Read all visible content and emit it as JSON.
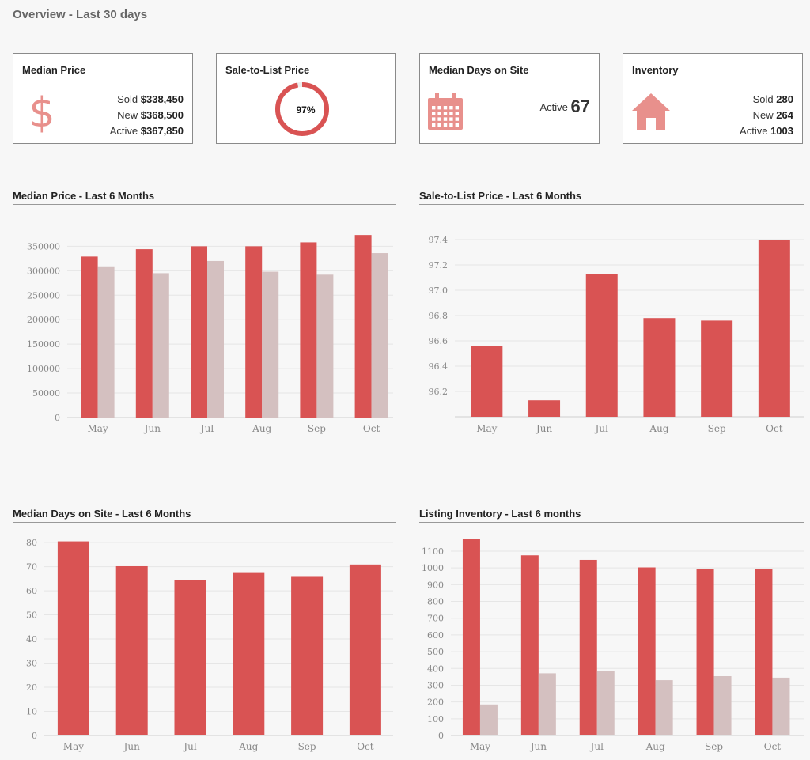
{
  "page": {
    "title": "Overview - Last 30 days"
  },
  "colors": {
    "primary": "#d95353",
    "secondary": "#d4c0c0",
    "icon": "#e8908c"
  },
  "cards": {
    "median_price": {
      "title": "Median Price",
      "icon": "dollar-icon",
      "sold_label": "Sold",
      "sold_value": "$338,450",
      "new_label": "New",
      "new_value": "$368,500",
      "active_label": "Active",
      "active_value": "$367,850"
    },
    "sale_to_list": {
      "title": "Sale-to-List Price",
      "value": "97%",
      "fraction": 0.97
    },
    "median_days": {
      "title": "Median Days on Site",
      "icon": "calendar-icon",
      "active_label": "Active",
      "active_value": "67"
    },
    "inventory": {
      "title": "Inventory",
      "icon": "house-icon",
      "sold_label": "Sold",
      "sold_value": "280",
      "new_label": "New",
      "new_value": "264",
      "active_label": "Active",
      "active_value": "1003"
    }
  },
  "chart_data": [
    {
      "id": "median_price",
      "title": "Median Price - Last 6 Months",
      "type": "bar",
      "categories": [
        "May",
        "Jun",
        "Jul",
        "Aug",
        "Sep",
        "Oct"
      ],
      "series": [
        {
          "values": [
            329000,
            344000,
            350000,
            350000,
            358000,
            373000
          ]
        },
        {
          "values": [
            309000,
            295000,
            320000,
            298000,
            292000,
            336000
          ]
        }
      ],
      "ylim": [
        0,
        370000
      ],
      "yticks": [
        0,
        50000,
        100000,
        150000,
        200000,
        250000,
        300000,
        350000
      ],
      "grid": true
    },
    {
      "id": "sale_to_list",
      "title": "Sale-to-List Price - Last 6 Months",
      "type": "bar",
      "categories": [
        "May",
        "Jun",
        "Jul",
        "Aug",
        "Sep",
        "Oct"
      ],
      "series": [
        {
          "values": [
            96.56,
            96.13,
            97.13,
            96.78,
            96.76,
            97.4
          ]
        }
      ],
      "ylim": [
        96.0,
        97.45
      ],
      "yticks": [
        96.2,
        96.4,
        96.6,
        96.8,
        97.0,
        97.2,
        97.4
      ],
      "ytick_labels": [
        "96.2",
        "96.4",
        "96.6",
        "96.8",
        "97.0",
        "97.2",
        "97.4"
      ],
      "grid": true
    },
    {
      "id": "median_days",
      "title": "Median Days on Site - Last 6 Months",
      "type": "bar",
      "categories": [
        "May",
        "Jun",
        "Jul",
        "Aug",
        "Sep",
        "Oct"
      ],
      "series": [
        {
          "values": [
            80.5,
            70.2,
            64.5,
            67.7,
            66.1,
            70.9
          ]
        }
      ],
      "ylim": [
        0,
        82
      ],
      "yticks": [
        0,
        10,
        20,
        30,
        40,
        50,
        60,
        70,
        80
      ],
      "grid": true
    },
    {
      "id": "inventory",
      "title": "Listing Inventory - Last 6 months",
      "type": "bar",
      "categories": [
        "May",
        "Jun",
        "Jul",
        "Aug",
        "Sep",
        "Oct"
      ],
      "series": [
        {
          "values": [
            1172,
            1075,
            1048,
            1003,
            993,
            993
          ]
        },
        {
          "values": [
            185,
            371,
            386,
            330,
            354,
            345
          ]
        }
      ],
      "ylim": [
        0,
        1180
      ],
      "yticks": [
        0,
        100,
        200,
        300,
        400,
        500,
        600,
        700,
        800,
        900,
        1000,
        1100
      ],
      "grid": true
    }
  ]
}
